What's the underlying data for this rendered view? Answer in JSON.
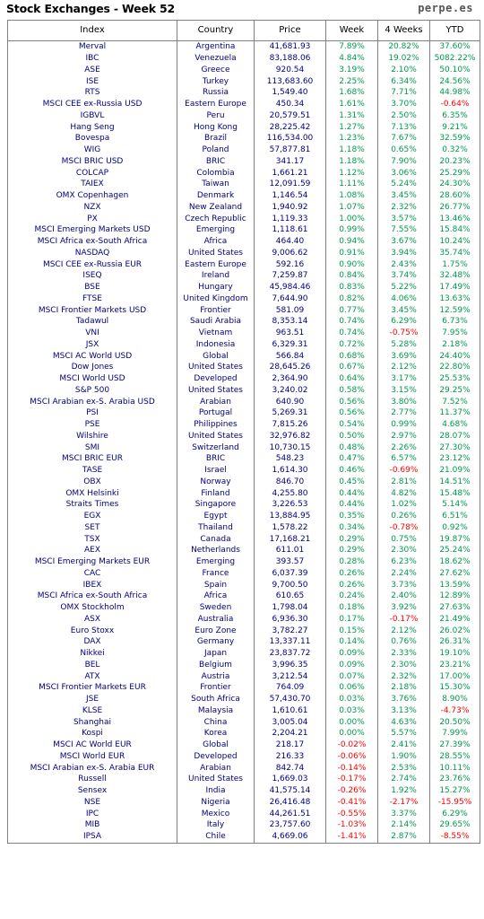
{
  "header": {
    "title": "Stock Exchanges - Week 52",
    "brand": "perpe.es"
  },
  "columns": [
    "Index",
    "Country",
    "Price",
    "Week",
    "4 Weeks",
    "YTD"
  ],
  "colors": {
    "text": "#000080",
    "positive": "#00994d",
    "negative": "#ff0000",
    "border": "#808080"
  },
  "rows": [
    [
      "Merval",
      "Argentina",
      "41,681.93",
      "7.89%",
      "20.82%",
      "37.60%"
    ],
    [
      "IBC",
      "Venezuela",
      "83,188.06",
      "4.84%",
      "19.02%",
      "5082.22%"
    ],
    [
      "ASE",
      "Greece",
      "920.54",
      "3.19%",
      "2.10%",
      "50.10%"
    ],
    [
      "ISE",
      "Turkey",
      "113,683.60",
      "2.25%",
      "6.34%",
      "24.56%"
    ],
    [
      "RTS",
      "Russia",
      "1,549.40",
      "1.68%",
      "7.71%",
      "44.98%"
    ],
    [
      "MSCI CEE ex-Russia USD",
      "Eastern Europe",
      "450.34",
      "1.61%",
      "3.70%",
      "-0.64%"
    ],
    [
      "IGBVL",
      "Peru",
      "20,579.51",
      "1.31%",
      "2.50%",
      "6.35%"
    ],
    [
      "Hang Seng",
      "Hong Kong",
      "28,225.42",
      "1.27%",
      "7.13%",
      "9.21%"
    ],
    [
      "Bovespa",
      "Brazil",
      "116,534.00",
      "1.23%",
      "7.67%",
      "32.59%"
    ],
    [
      "WIG",
      "Poland",
      "57,877.81",
      "1.18%",
      "0.65%",
      "0.32%"
    ],
    [
      "MSCI BRIC USD",
      "BRIC",
      "341.17",
      "1.18%",
      "7.90%",
      "20.23%"
    ],
    [
      "COLCAP",
      "Colombia",
      "1,661.21",
      "1.12%",
      "3.06%",
      "25.29%"
    ],
    [
      "TAIEX",
      "Taiwan",
      "12,091.59",
      "1.11%",
      "5.24%",
      "24.30%"
    ],
    [
      "OMX Copenhagen",
      "Denmark",
      "1,146.54",
      "1.08%",
      "3.45%",
      "28.60%"
    ],
    [
      "NZX",
      "New Zealand",
      "1,940.92",
      "1.07%",
      "2.32%",
      "26.77%"
    ],
    [
      "PX",
      "Czech Republic",
      "1,119.33",
      "1.00%",
      "3.57%",
      "13.46%"
    ],
    [
      "MSCI Emerging Markets USD",
      "Emerging",
      "1,118.61",
      "0.99%",
      "7.55%",
      "15.84%"
    ],
    [
      "MSCI Africa ex-South Africa",
      "Africa",
      "464.40",
      "0.94%",
      "3.67%",
      "10.24%"
    ],
    [
      "NASDAQ",
      "United States",
      "9,006.62",
      "0.91%",
      "3.94%",
      "35.74%"
    ],
    [
      "MSCI CEE ex-Russia EUR",
      "Eastern Europe",
      "592.16",
      "0.90%",
      "2.43%",
      "1.75%"
    ],
    [
      "ISEQ",
      "Ireland",
      "7,259.87",
      "0.84%",
      "3.74%",
      "32.48%"
    ],
    [
      "BSE",
      "Hungary",
      "45,984.46",
      "0.83%",
      "5.22%",
      "17.49%"
    ],
    [
      "FTSE",
      "United Kingdom",
      "7,644.90",
      "0.82%",
      "4.06%",
      "13.63%"
    ],
    [
      "MSCI Frontier Markets USD",
      "Frontier",
      "581.09",
      "0.77%",
      "3.45%",
      "12.59%"
    ],
    [
      "Tadawul",
      "Saudi Arabia",
      "8,353.14",
      "0.74%",
      "6.29%",
      "6.73%"
    ],
    [
      "VNI",
      "Vietnam",
      "963.51",
      "0.74%",
      "-0.75%",
      "7.95%"
    ],
    [
      "JSX",
      "Indonesia",
      "6,329.31",
      "0.72%",
      "5.28%",
      "2.18%"
    ],
    [
      "MSCI AC World USD",
      "Global",
      "566.84",
      "0.68%",
      "3.69%",
      "24.40%"
    ],
    [
      "Dow Jones",
      "United States",
      "28,645.26",
      "0.67%",
      "2.12%",
      "22.80%"
    ],
    [
      "MSCI World USD",
      "Developed",
      "2,364.90",
      "0.64%",
      "3.17%",
      "25.53%"
    ],
    [
      "S&P 500",
      "United States",
      "3,240.02",
      "0.58%",
      "3.15%",
      "29.25%"
    ],
    [
      "MSCI Arabian ex-S. Arabia USD",
      "Arabian",
      "640.90",
      "0.56%",
      "3.80%",
      "7.52%"
    ],
    [
      "PSI",
      "Portugal",
      "5,269.31",
      "0.56%",
      "2.77%",
      "11.37%"
    ],
    [
      "PSE",
      "Philippines",
      "7,815.26",
      "0.54%",
      "0.99%",
      "4.68%"
    ],
    [
      "Wilshire",
      "United States",
      "32,976.82",
      "0.50%",
      "2.97%",
      "28.07%"
    ],
    [
      "SMI",
      "Switzerland",
      "10,730.15",
      "0.48%",
      "2.26%",
      "27.30%"
    ],
    [
      "MSCI BRIC EUR",
      "BRIC",
      "548.23",
      "0.47%",
      "6.57%",
      "23.12%"
    ],
    [
      "TASE",
      "Israel",
      "1,614.30",
      "0.46%",
      "-0.69%",
      "21.09%"
    ],
    [
      "OBX",
      "Norway",
      "846.70",
      "0.45%",
      "2.81%",
      "14.51%"
    ],
    [
      "OMX Helsinki",
      "Finland",
      "4,255.80",
      "0.44%",
      "4.82%",
      "15.48%"
    ],
    [
      "Straits Times",
      "Singapore",
      "3,226.53",
      "0.44%",
      "1.02%",
      "5.14%"
    ],
    [
      "EGX",
      "Egypt",
      "13,884.95",
      "0.35%",
      "0.26%",
      "6.51%"
    ],
    [
      "SET",
      "Thailand",
      "1,578.22",
      "0.34%",
      "-0.78%",
      "0.92%"
    ],
    [
      "TSX",
      "Canada",
      "17,168.21",
      "0.29%",
      "0.75%",
      "19.87%"
    ],
    [
      "AEX",
      "Netherlands",
      "611.01",
      "0.29%",
      "2.30%",
      "25.24%"
    ],
    [
      "MSCI Emerging Markets EUR",
      "Emerging",
      "393.57",
      "0.28%",
      "6.23%",
      "18.62%"
    ],
    [
      "CAC",
      "France",
      "6,037.39",
      "0.26%",
      "2.24%",
      "27.62%"
    ],
    [
      "IBEX",
      "Spain",
      "9,700.50",
      "0.26%",
      "3.73%",
      "13.59%"
    ],
    [
      "MSCI Africa ex-South Africa",
      "Africa",
      "610.65",
      "0.24%",
      "2.40%",
      "12.89%"
    ],
    [
      "OMX Stockholm",
      "Sweden",
      "1,798.04",
      "0.18%",
      "3.92%",
      "27.63%"
    ],
    [
      "ASX",
      "Australia",
      "6,936.30",
      "0.17%",
      "-0.17%",
      "21.49%"
    ],
    [
      "Euro Stoxx",
      "Euro Zone",
      "3,782.27",
      "0.15%",
      "2.12%",
      "26.02%"
    ],
    [
      "DAX",
      "Germany",
      "13,337.11",
      "0.14%",
      "0.76%",
      "26.31%"
    ],
    [
      "Nikkei",
      "Japan",
      "23,837.72",
      "0.09%",
      "2.33%",
      "19.10%"
    ],
    [
      "BEL",
      "Belgium",
      "3,996.35",
      "0.09%",
      "2.30%",
      "23.21%"
    ],
    [
      "ATX",
      "Austria",
      "3,212.54",
      "0.07%",
      "2.32%",
      "17.00%"
    ],
    [
      "MSCI Frontier Markets EUR",
      "Frontier",
      "764.09",
      "0.06%",
      "2.18%",
      "15.30%"
    ],
    [
      "JSE",
      "South Africa",
      "57,430.70",
      "0.03%",
      "3.76%",
      "8.90%"
    ],
    [
      "KLSE",
      "Malaysia",
      "1,610.61",
      "0.03%",
      "3.13%",
      "-4.73%"
    ],
    [
      "Shanghai",
      "China",
      "3,005.04",
      "0.00%",
      "4.63%",
      "20.50%"
    ],
    [
      "Kospi",
      "Korea",
      "2,204.21",
      "0.00%",
      "5.57%",
      "7.99%"
    ],
    [
      "MSCI AC World EUR",
      "Global",
      "218.17",
      "-0.02%",
      "2.41%",
      "27.39%"
    ],
    [
      "MSCI World EUR",
      "Developed",
      "216.33",
      "-0.06%",
      "1.90%",
      "28.55%"
    ],
    [
      "MSCI Arabian ex-S. Arabia EUR",
      "Arabian",
      "842.74",
      "-0.14%",
      "2.53%",
      "10.11%"
    ],
    [
      "Russell",
      "United States",
      "1,669.03",
      "-0.17%",
      "2.74%",
      "23.76%"
    ],
    [
      "Sensex",
      "India",
      "41,575.14",
      "-0.26%",
      "1.92%",
      "15.27%"
    ],
    [
      "NSE",
      "Nigeria",
      "26,416.48",
      "-0.41%",
      "-2.17%",
      "-15.95%"
    ],
    [
      "IPC",
      "Mexico",
      "44,261.51",
      "-0.55%",
      "3.37%",
      "6.29%"
    ],
    [
      "MIB",
      "Italy",
      "23,757.60",
      "-1.03%",
      "2.14%",
      "29.65%"
    ],
    [
      "IPSA",
      "Chile",
      "4,669.06",
      "-1.41%",
      "2.87%",
      "-8.55%"
    ]
  ]
}
